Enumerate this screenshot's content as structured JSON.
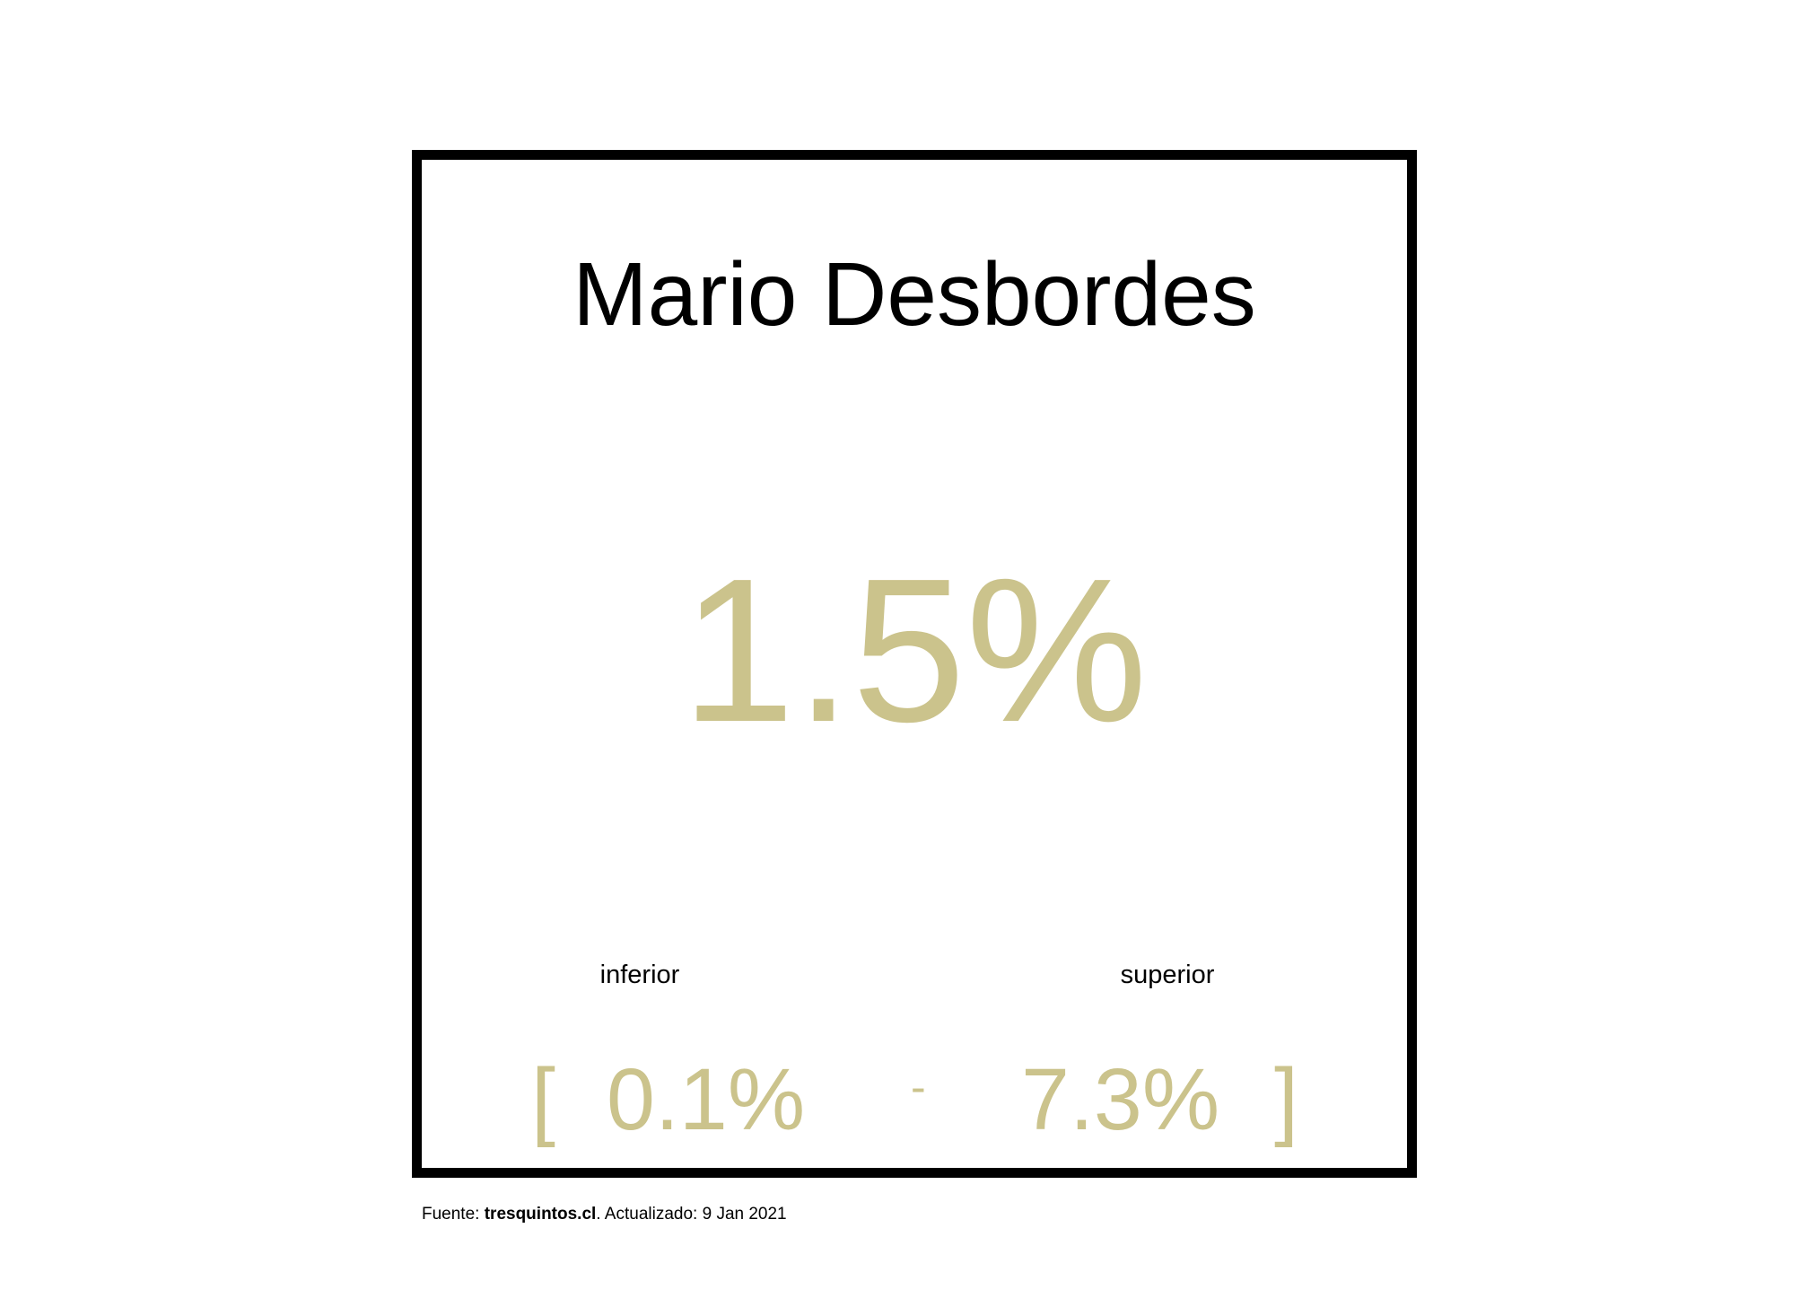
{
  "card": {
    "candidate": "Mario Desbordes",
    "estimate": "1.5%",
    "lower_label": "inferior",
    "upper_label": "superior",
    "bracket_open": "[",
    "lower_value": "0.1%",
    "separator": "-",
    "upper_value": "7.3%",
    "bracket_close": "]"
  },
  "footer": {
    "source_prefix": "Fuente: ",
    "source_name": "tresquintos.cl",
    "updated_text": ". Actualizado: 9 Jan 2021"
  },
  "colors": {
    "accent": "#cbc38c",
    "text": "#000000",
    "border": "#000000",
    "background": "#ffffff"
  }
}
